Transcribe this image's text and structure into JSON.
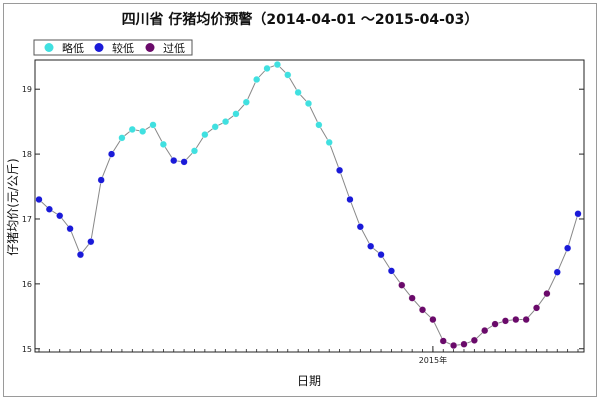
{
  "chart_data": {
    "type": "line",
    "title": "四川省 仔猪均价预警（2014-04-01 ～2015-04-03）",
    "xlabel": "日期",
    "ylabel": "仔猪均价(元/公斤)",
    "ylim": [
      14.95,
      19.45
    ],
    "yticks": [
      15,
      16,
      17,
      18,
      19
    ],
    "xtick_labels": [
      {
        "label": "2015年",
        "index": 38
      }
    ],
    "legend": {
      "placement": "top-left",
      "items": [
        {
          "name": "略低",
          "color": "#40e0e0"
        },
        {
          "name": "较低",
          "color": "#1a1ad8"
        },
        {
          "name": "过低",
          "color": "#6a0a6a"
        }
      ]
    },
    "line_color": "#888888",
    "grid": false,
    "series": [
      {
        "values": [
          17.3,
          17.15,
          17.05,
          16.85,
          16.45,
          16.65,
          17.6,
          18.0,
          18.25,
          18.38,
          18.35,
          18.45,
          18.15,
          17.9,
          17.88,
          18.05,
          18.3,
          18.42,
          18.5,
          18.62,
          18.8,
          19.15,
          19.32,
          19.38,
          19.22,
          18.95,
          18.78,
          18.45,
          18.18,
          17.75,
          17.3,
          16.88,
          16.58,
          16.45,
          16.2,
          15.98,
          15.78,
          15.6,
          15.45,
          15.12,
          15.05,
          15.07,
          15.13,
          15.28,
          15.38,
          15.43,
          15.45,
          15.45,
          15.63,
          15.85,
          16.18,
          16.55,
          17.08
        ],
        "levels": [
          "较低",
          "较低",
          "较低",
          "较低",
          "较低",
          "较低",
          "较低",
          "较低",
          "略低",
          "略低",
          "略低",
          "略低",
          "略低",
          "较低",
          "较低",
          "略低",
          "略低",
          "略低",
          "略低",
          "略低",
          "略低",
          "略低",
          "略低",
          "略低",
          "略低",
          "略低",
          "略低",
          "略低",
          "略低",
          "较低",
          "较低",
          "较低",
          "较低",
          "较低",
          "较低",
          "过低",
          "过低",
          "过低",
          "过低",
          "过低",
          "过低",
          "过低",
          "过低",
          "过低",
          "过低",
          "过低",
          "过低",
          "过低",
          "过低",
          "过低",
          "较低",
          "较低",
          "较低"
        ]
      }
    ]
  }
}
